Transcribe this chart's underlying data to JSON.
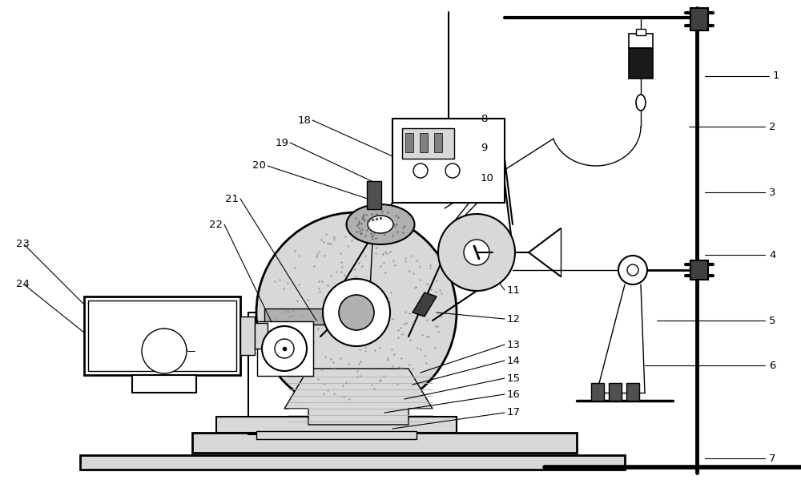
{
  "bg_color": "#ffffff",
  "lc": "#000000",
  "gray_light": "#d8d8d8",
  "gray_mid": "#b0b0b0",
  "gray_dark": "#606060",
  "black_fill": "#1a1a1a"
}
